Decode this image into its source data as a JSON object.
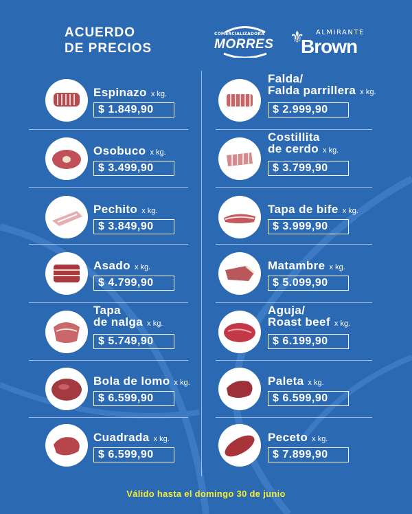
{
  "header": {
    "title_line1": "ACUERDO",
    "title_line2": "DE PRECIOS",
    "logo1_small": "COMERCIALIZADORA",
    "logo1_big": "MORRES",
    "logo2_small": "ALMIRANTE",
    "logo2_big": "Brown"
  },
  "unit_label": "x kg.",
  "left_items": [
    {
      "name_line1": "Espinazo",
      "name_line2": "",
      "price": "$ 1.849,90",
      "icon": "ribs-icon"
    },
    {
      "name_line1": "Osobuco",
      "name_line2": "",
      "price": "$ 3.499,90",
      "icon": "osobuco-icon"
    },
    {
      "name_line1": "Pechito",
      "name_line2": "",
      "price": "$ 3.849,90",
      "icon": "pechito-icon"
    },
    {
      "name_line1": "Asado",
      "name_line2": "",
      "price": "$ 4.799,90",
      "icon": "asado-icon"
    },
    {
      "name_line1": "Tapa",
      "name_line2": "de nalga",
      "price": "$ 5.749,90",
      "icon": "tapa-nalga-icon"
    },
    {
      "name_line1": "Bola de lomo",
      "name_line2": "",
      "price": "$ 6.599,90",
      "icon": "bola-lomo-icon"
    },
    {
      "name_line1": "Cuadrada",
      "name_line2": "",
      "price": "$ 6.599,90",
      "icon": "cuadrada-icon"
    }
  ],
  "right_items": [
    {
      "name_line1": "Falda/",
      "name_line2": "Falda parrillera",
      "price": "$ 2.999,90",
      "icon": "falda-icon"
    },
    {
      "name_line1": "Costillita",
      "name_line2": "de cerdo",
      "price": "$ 3.799,90",
      "icon": "costillita-icon"
    },
    {
      "name_line1": "Tapa de bife",
      "name_line2": "",
      "price": "$ 3.999,90",
      "icon": "tapa-bife-icon"
    },
    {
      "name_line1": "Matambre",
      "name_line2": "",
      "price": "$ 5.099,90",
      "icon": "matambre-icon"
    },
    {
      "name_line1": "Aguja/",
      "name_line2": "Roast beef",
      "price": "$ 6.199,90",
      "icon": "aguja-icon"
    },
    {
      "name_line1": "Paleta",
      "name_line2": "",
      "price": "$ 6.599,90",
      "icon": "paleta-icon"
    },
    {
      "name_line1": "Peceto",
      "name_line2": "",
      "price": "$ 7.899,90",
      "icon": "peceto-icon"
    }
  ],
  "footer": {
    "validity": "Válido hasta el domingo 30 de junio"
  },
  "colors": {
    "background": "#2b69b3",
    "text": "#ffffff",
    "footer": "#f6ee2f",
    "meat": "#b84a4f"
  }
}
